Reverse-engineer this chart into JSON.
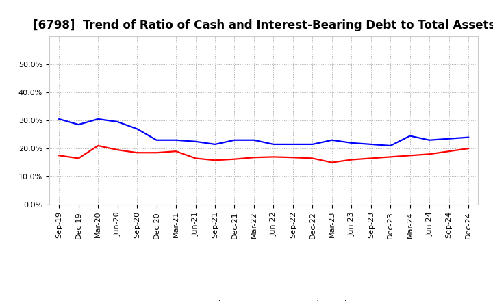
{
  "title": "[6798]  Trend of Ratio of Cash and Interest-Bearing Debt to Total Assets",
  "x_labels": [
    "Sep-19",
    "Dec-19",
    "Mar-20",
    "Jun-20",
    "Sep-20",
    "Dec-20",
    "Mar-21",
    "Jun-21",
    "Sep-21",
    "Dec-21",
    "Mar-22",
    "Jun-22",
    "Sep-22",
    "Dec-22",
    "Mar-23",
    "Jun-23",
    "Sep-23",
    "Dec-23",
    "Mar-24",
    "Jun-24",
    "Sep-24",
    "Dec-24"
  ],
  "cash": [
    17.5,
    16.5,
    21.0,
    19.5,
    18.5,
    18.5,
    19.0,
    16.5,
    15.8,
    16.2,
    16.8,
    17.0,
    16.8,
    16.5,
    15.0,
    16.0,
    16.5,
    17.0,
    17.5,
    18.0,
    19.0,
    20.0
  ],
  "interest_bearing_debt": [
    30.5,
    28.5,
    30.5,
    29.5,
    27.0,
    23.0,
    23.0,
    22.5,
    21.5,
    23.0,
    23.0,
    21.5,
    21.5,
    21.5,
    23.0,
    22.0,
    21.5,
    21.0,
    24.5,
    23.0,
    23.5,
    24.0
  ],
  "cash_color": "#ff0000",
  "debt_color": "#0000ff",
  "background_color": "#ffffff",
  "grid_color": "#999999",
  "ylim": [
    0,
    60
  ],
  "yticks": [
    0.0,
    10.0,
    20.0,
    30.0,
    40.0,
    50.0
  ],
  "legend_cash": "Cash",
  "legend_debt": "Interest-Bearing Debt",
  "title_fontsize": 12,
  "tick_fontsize": 8,
  "legend_fontsize": 9,
  "linewidth": 1.6
}
